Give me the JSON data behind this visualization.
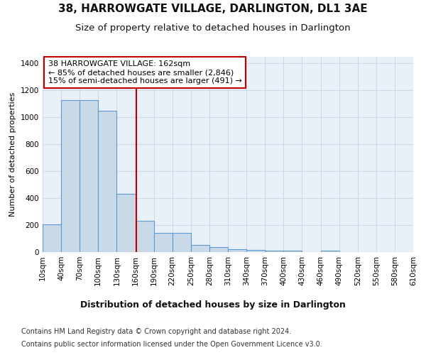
{
  "title": "38, HARROWGATE VILLAGE, DARLINGTON, DL1 3AE",
  "subtitle": "Size of property relative to detached houses in Darlington",
  "xlabel": "Distribution of detached houses by size in Darlington",
  "ylabel": "Number of detached properties",
  "footnote1": "Contains HM Land Registry data © Crown copyright and database right 2024.",
  "footnote2": "Contains public sector information licensed under the Open Government Licence v3.0.",
  "bar_color": "#c9d9e8",
  "bar_edge_color": "#5b9bd5",
  "bin_starts": [
    10,
    40,
    70,
    100,
    130,
    160,
    190,
    220,
    250,
    280,
    310,
    340,
    370,
    400,
    430,
    460,
    490,
    520,
    550,
    580
  ],
  "bin_width": 30,
  "bar_heights": [
    205,
    1130,
    1130,
    1050,
    430,
    230,
    140,
    140,
    55,
    35,
    20,
    15,
    10,
    10,
    0,
    10,
    0,
    0,
    0,
    0
  ],
  "tick_labels": [
    "10sqm",
    "40sqm",
    "70sqm",
    "100sqm",
    "130sqm",
    "160sqm",
    "190sqm",
    "220sqm",
    "250sqm",
    "280sqm",
    "310sqm",
    "340sqm",
    "370sqm",
    "400sqm",
    "430sqm",
    "460sqm",
    "490sqm",
    "520sqm",
    "550sqm",
    "580sqm",
    "610sqm"
  ],
  "property_size": 162,
  "red_line_color": "#c00000",
  "annotation_text": "38 HARROWGATE VILLAGE: 162sqm\n← 85% of detached houses are smaller (2,846)\n15% of semi-detached houses are larger (491) →",
  "annotation_box_color": "#c00000",
  "annotation_text_color": "#000000",
  "annotation_bg_color": "#ffffff",
  "ylim": [
    0,
    1450
  ],
  "yticks": [
    0,
    200,
    400,
    600,
    800,
    1000,
    1200,
    1400
  ],
  "grid_color": "#d0d8e8",
  "background_color": "#eaf0f8",
  "fig_bg_color": "#ffffff",
  "title_fontsize": 11,
  "subtitle_fontsize": 9.5,
  "xlabel_fontsize": 9,
  "ylabel_fontsize": 8,
  "tick_fontsize": 7.5,
  "annotation_fontsize": 8,
  "footnote_fontsize": 7
}
